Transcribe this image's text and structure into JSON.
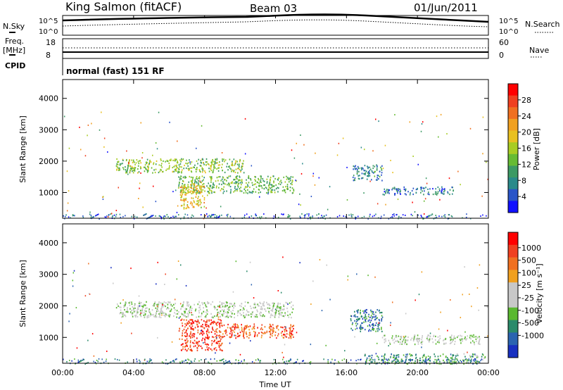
{
  "header": {
    "station": "King Salmon (fitACF)",
    "beam": "Beam 03",
    "date": "01/Jun/2011"
  },
  "noise_panel": {
    "left_label": "N.Sky",
    "right_label": "N.Search",
    "y_top": "10^5",
    "y_bottom": "10^0",
    "y_top_right": "10^5",
    "y_bottom_right": "10^0"
  },
  "freq_panel": {
    "left_label_top": "Freq.",
    "left_label_bottom": "[MHz]",
    "right_label": "Nave",
    "ticks_left": [
      "18",
      "8"
    ],
    "ticks_right": [
      "60",
      "0"
    ]
  },
  "cpid_panel": {
    "label": "CPID",
    "text": "normal (fast) 151 RF"
  },
  "chart_data": [
    {
      "type": "heatmap",
      "name": "power",
      "ylabel": "Slant Range [km]",
      "ylim": [
        180,
        4600
      ],
      "y_ticks": [
        "1000",
        "2000",
        "3000",
        "4000"
      ],
      "xlim": [
        0,
        24
      ],
      "colorbar": {
        "label": "Power [dB]",
        "ticks": [
          "4",
          "8",
          "12",
          "16",
          "20",
          "24",
          "28"
        ],
        "colors": [
          "#1010ff",
          "#2a55c8",
          "#2a8a8a",
          "#3c9a64",
          "#66bb33",
          "#a8cc22",
          "#e8c020",
          "#f0a020",
          "#f07020",
          "#f04020",
          "#ff0000"
        ]
      },
      "regions": [
        {
          "t0": 3.0,
          "t1": 10.2,
          "r0": 1650,
          "r1": 2100,
          "level": 0.45
        },
        {
          "t0": 6.5,
          "t1": 13.0,
          "r0": 1000,
          "r1": 1550,
          "level": 0.4
        },
        {
          "t0": 6.6,
          "t1": 8.0,
          "r0": 500,
          "r1": 1300,
          "level": 0.6
        },
        {
          "t0": 16.3,
          "t1": 18.0,
          "r0": 1400,
          "r1": 1900,
          "level": 0.25
        },
        {
          "t0": 18.0,
          "t1": 22.0,
          "r0": 950,
          "r1": 1200,
          "level": 0.2
        }
      ]
    },
    {
      "type": "heatmap",
      "name": "velocity",
      "xlabel": "Time UT",
      "ylabel": "Slant Range [km]",
      "ylim": [
        180,
        4600
      ],
      "y_ticks": [
        "1000",
        "2000",
        "3000",
        "4000"
      ],
      "xlim": [
        0,
        24
      ],
      "x_ticks": [
        "00:00",
        "04:00",
        "08:00",
        "12:00",
        "16:00",
        "20:00",
        "00:00"
      ],
      "colorbar": {
        "label": "Velocity [m s⁻¹]",
        "ticks": [
          "1000",
          "500",
          "100",
          "25",
          "-25",
          "-100",
          "-500",
          "-1000"
        ],
        "colors": [
          "#1830c0",
          "#2a64b0",
          "#2a8a6a",
          "#5ab830",
          "#c8c8c8",
          "#c8c8c8",
          "#f0a020",
          "#f07020",
          "#f04020",
          "#ff0000"
        ]
      },
      "regions": [
        {
          "t0": 3.0,
          "t1": 13.0,
          "r0": 1650,
          "r1": 2150,
          "level": 0.45
        },
        {
          "t0": 6.5,
          "t1": 9.0,
          "r0": 600,
          "r1": 1600,
          "level": 0.85
        },
        {
          "t0": 9.0,
          "t1": 13.0,
          "r0": 1000,
          "r1": 1450,
          "level": 0.8
        },
        {
          "t0": 16.2,
          "t1": 18.0,
          "r0": 1200,
          "r1": 1900,
          "level": 0.2
        },
        {
          "t0": 18.0,
          "t1": 23.5,
          "r0": 800,
          "r1": 1100,
          "level": 0.45
        },
        {
          "t0": 17.0,
          "t1": 23.8,
          "r0": 180,
          "r1": 500,
          "level": 0.3
        }
      ]
    }
  ]
}
